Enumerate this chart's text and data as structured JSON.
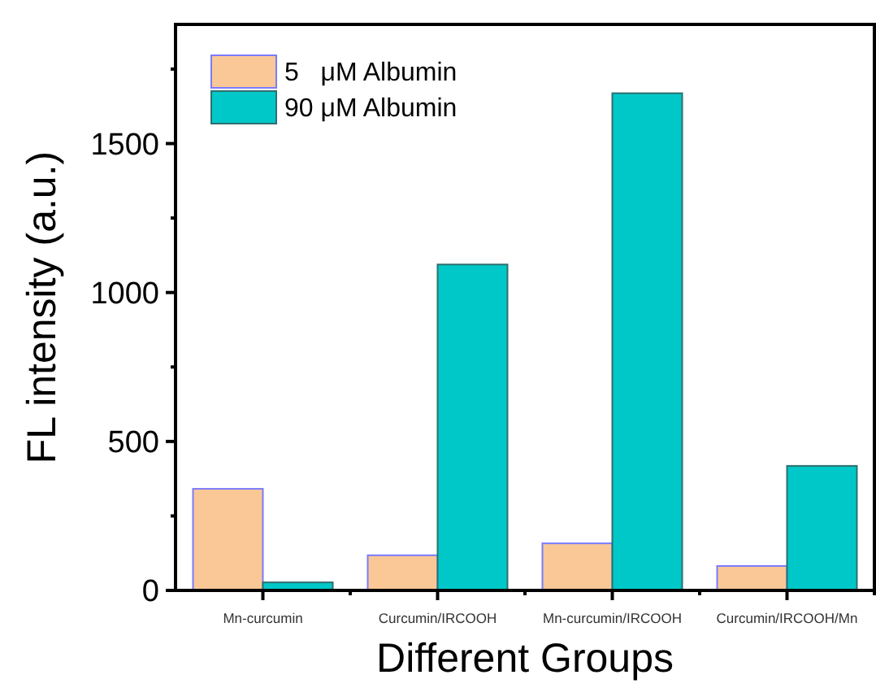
{
  "chart_data": {
    "type": "bar",
    "xlabel": "Different Groups",
    "ylabel": "FL intensity (a.u.)",
    "categories": [
      "Mn-curcumin",
      "Curcumin/IRCOOH",
      "Mn-curcumin/IRCOOH",
      "Curcumin/IRCOOH/Mn"
    ],
    "series": [
      {
        "name": "5   μM Albumin",
        "color": "#f9c896",
        "values": [
          341,
          118,
          158,
          82
        ]
      },
      {
        "name": "90 μM Albumin",
        "color": "#00c8c8",
        "values": [
          27,
          1094,
          1669,
          418
        ]
      }
    ],
    "ylim": [
      0,
      1900
    ],
    "yticks": [
      0,
      {
        "value": 250,
        "label": null
      },
      500,
      {
        "value": 750,
        "label": null
      },
      1000,
      {
        "value": 1250,
        "label": null
      },
      1500,
      {
        "value": 1750,
        "label": null
      }
    ],
    "grid": false,
    "legend": "top left"
  }
}
